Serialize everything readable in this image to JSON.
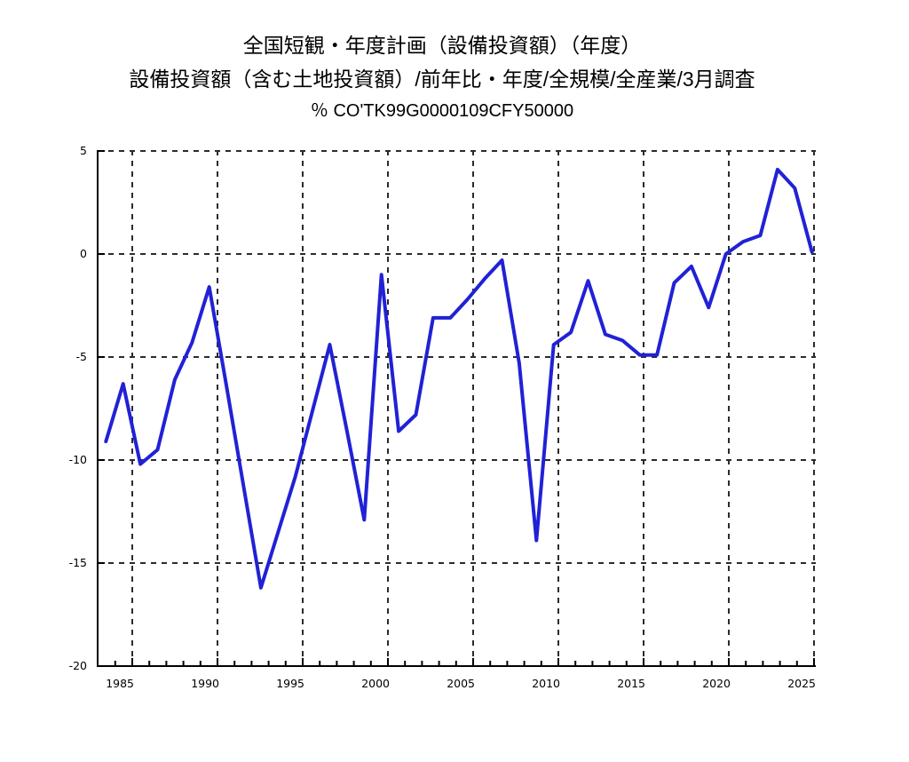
{
  "title": {
    "line1": "全国短観・年度計画（設備投資額）（年度）",
    "line2": "設備投資額（含む土地投資額）/前年比・年度/全規模/全産業/3月調査",
    "line3": "％ CO'TK99G0000109CFY50000"
  },
  "chart_data": {
    "type": "line",
    "title": "全国短観・年度計画（設備投資額）（年度）",
    "subtitle": "設備投資額（含む土地投資額）/前年比・年度/全規模/全産業/3月調査",
    "series_code": "CO'TK99G0000109CFY50000",
    "unit": "％",
    "xlabel": "",
    "ylabel": "%",
    "ylim": [
      -20,
      5
    ],
    "yticks": [
      5,
      0,
      -5,
      -10,
      -15,
      -20
    ],
    "xticks": [
      1985,
      1990,
      1995,
      2000,
      2005,
      2010,
      2015,
      2020,
      2025
    ],
    "grid": true,
    "legend": false,
    "line_color": "#2121d6",
    "grid_color": "#2b2b2b",
    "axis_color": "#000000",
    "x": [
      1984,
      1985,
      1986,
      1987,
      1988,
      1989,
      1990,
      1991,
      1992,
      1993,
      1994,
      1995,
      1996,
      1997,
      1998,
      1999,
      2000,
      2001,
      2002,
      2003,
      2004,
      2005,
      2006,
      2007,
      2008,
      2009,
      2010,
      2011,
      2012,
      2013,
      2014,
      2015,
      2016,
      2017,
      2018,
      2019,
      2020,
      2021,
      2022,
      2023,
      2024,
      2025
    ],
    "values": [
      -9.1,
      -6.3,
      -10.2,
      -9.5,
      -6.1,
      -4.3,
      -1.6,
      -6.4,
      -11.3,
      -16.2,
      -13.5,
      -10.8,
      -7.6,
      -4.4,
      -8.6,
      -12.9,
      -1.0,
      -8.6,
      -7.8,
      -3.1,
      -3.1,
      -2.2,
      -1.2,
      -0.3,
      -5.3,
      -13.9,
      -4.4,
      -3.8,
      -1.3,
      -3.9,
      -4.2,
      -4.9,
      -4.9,
      -1.4,
      -0.6,
      -2.6,
      0.0,
      0.6,
      0.9,
      4.1,
      3.2,
      0.1
    ]
  }
}
